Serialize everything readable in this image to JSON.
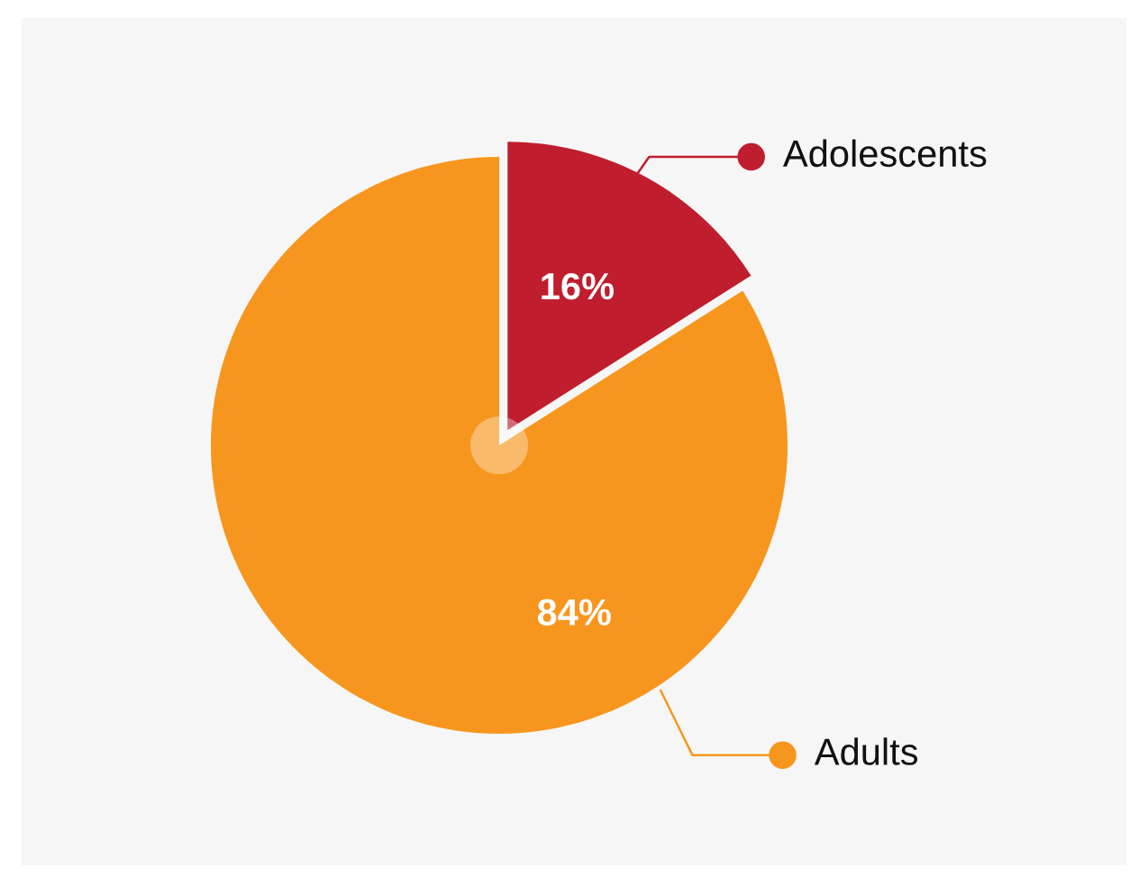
{
  "chart_data": {
    "type": "pie",
    "categories": [
      "Adolescents",
      "Adults"
    ],
    "values": [
      16,
      84
    ],
    "colors": [
      "#c01e2e",
      "#f7961e"
    ],
    "value_labels": [
      "16%",
      "84%"
    ],
    "legend": "right"
  }
}
